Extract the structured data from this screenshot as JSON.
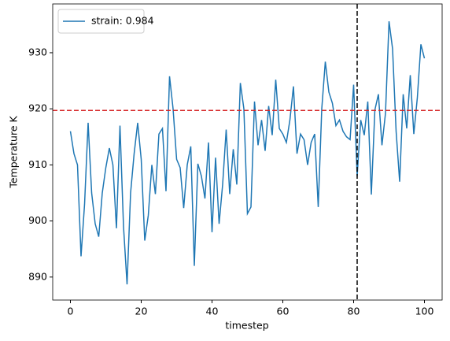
{
  "chart_data": {
    "type": "line",
    "xlabel": "timestep",
    "ylabel": "Temperature K",
    "x": [
      0,
      1,
      2,
      3,
      4,
      5,
      6,
      7,
      8,
      9,
      10,
      11,
      12,
      13,
      14,
      15,
      16,
      17,
      18,
      19,
      20,
      21,
      22,
      23,
      24,
      25,
      26,
      27,
      28,
      29,
      30,
      31,
      32,
      33,
      34,
      35,
      36,
      37,
      38,
      39,
      40,
      41,
      42,
      43,
      44,
      45,
      46,
      47,
      48,
      49,
      50,
      51,
      52,
      53,
      54,
      55,
      56,
      57,
      58,
      59,
      60,
      61,
      62,
      63,
      64,
      65,
      66,
      67,
      68,
      69,
      70,
      71,
      72,
      73,
      74,
      75,
      76,
      77,
      78,
      79,
      80,
      81,
      82,
      83,
      84,
      85,
      86,
      87,
      88,
      89,
      90,
      91,
      92,
      93,
      94,
      95,
      96,
      97,
      98,
      99,
      100
    ],
    "series": [
      {
        "name": "strain: 0.984",
        "color": "#1f77b4",
        "values": [
          916,
          912,
          910,
          893.7,
          903,
          917.5,
          905,
          899.5,
          897.2,
          905,
          909.5,
          913,
          910,
          898.7,
          917,
          899,
          888.7,
          905,
          912,
          917.5,
          911,
          896.5,
          901,
          910,
          904.8,
          915.5,
          916.5,
          905.3,
          925.8,
          920,
          911,
          909.5,
          902.3,
          910,
          913.3,
          892,
          910.2,
          908,
          904,
          914,
          898,
          911.3,
          899.5,
          906.5,
          916.3,
          904.8,
          912.8,
          906.5,
          924.6,
          920,
          901.3,
          902.5,
          921.3,
          913.5,
          918,
          912.5,
          920.5,
          915.3,
          925.2,
          916.5,
          915.5,
          914,
          918,
          924,
          912,
          915.5,
          914.5,
          910,
          914,
          915.5,
          902.5,
          920,
          928.4,
          923,
          921,
          917,
          918,
          916,
          915,
          914.5,
          924.3,
          908,
          918,
          915.3,
          921.3,
          904.7,
          919.8,
          922.6,
          913.5,
          919.2,
          935.6,
          930.7,
          916,
          907,
          922.6,
          916.5,
          926,
          915.5,
          922,
          931.5,
          929
        ]
      }
    ],
    "hlines": [
      {
        "value": 919.7,
        "color": "#d62728"
      }
    ],
    "vlines": [
      {
        "value": 81,
        "color": "#000000"
      }
    ],
    "xlim": [
      -5,
      105
    ],
    "ylim": [
      885.9,
      938.7
    ],
    "xticks": [
      0,
      20,
      40,
      60,
      80,
      100
    ],
    "yticks": [
      890,
      900,
      910,
      920,
      930
    ],
    "legend": "upper left"
  }
}
